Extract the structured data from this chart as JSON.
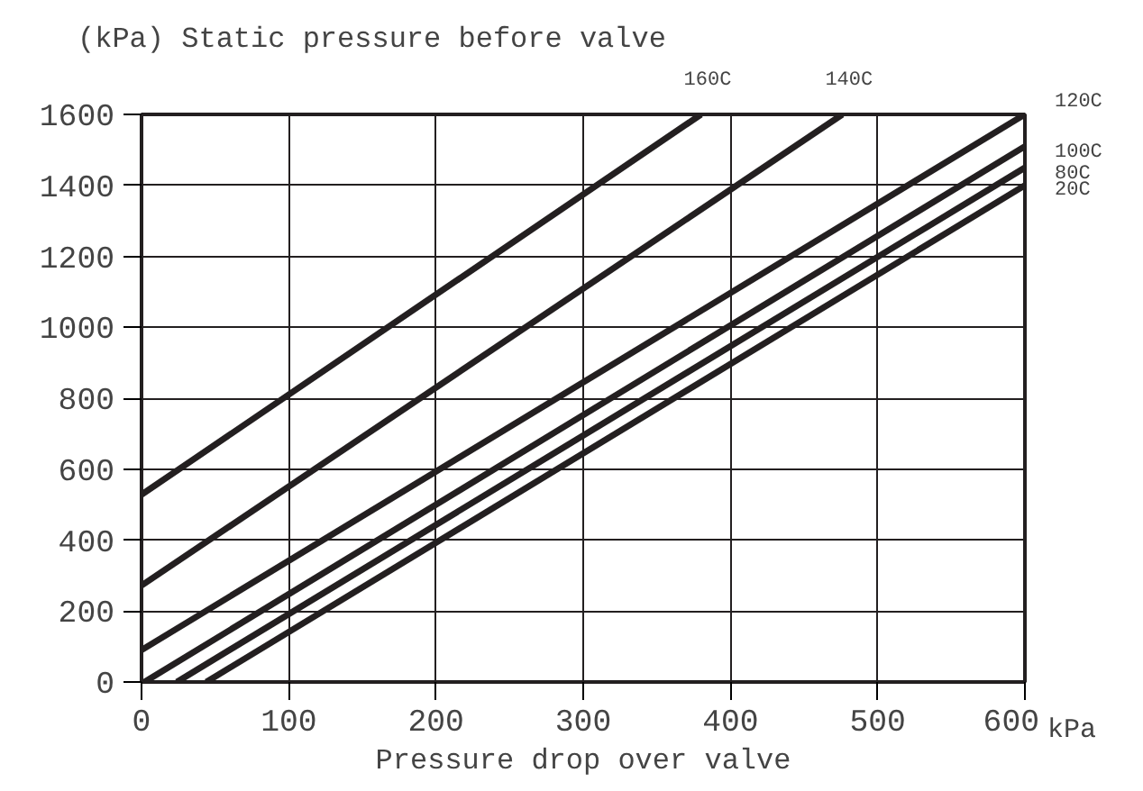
{
  "chart_data": {
    "type": "line",
    "title": "(kPa) Static pressure before valve",
    "xlabel": "Pressure drop over valve",
    "annotations": [
      "kPa"
    ],
    "xlim": [
      0,
      600
    ],
    "ylim": [
      0,
      1600
    ],
    "xticks": [
      0,
      100,
      200,
      300,
      400,
      500,
      600
    ],
    "yticks": [
      0,
      200,
      400,
      600,
      800,
      1000,
      1200,
      1400,
      1600
    ],
    "grid": true,
    "series": [
      {
        "name": "160C",
        "color": "#231f20",
        "x": [
          0,
          380
        ],
        "values": [
          528,
          1600
        ]
      },
      {
        "name": "140C",
        "color": "#231f20",
        "x": [
          0,
          476
        ],
        "values": [
          272,
          1600
        ]
      },
      {
        "name": "120C",
        "color": "#231f20",
        "x": [
          0,
          600
        ],
        "values": [
          90,
          1600
        ]
      },
      {
        "name": "100C",
        "color": "#231f20",
        "x": [
          2,
          600
        ],
        "values": [
          0,
          1510
        ]
      },
      {
        "name": "80C",
        "color": "#231f20",
        "x": [
          24,
          600
        ],
        "values": [
          0,
          1450
        ]
      },
      {
        "name": "20C",
        "color": "#231f20",
        "x": [
          44,
          600
        ],
        "values": [
          0,
          1400
        ]
      }
    ]
  }
}
